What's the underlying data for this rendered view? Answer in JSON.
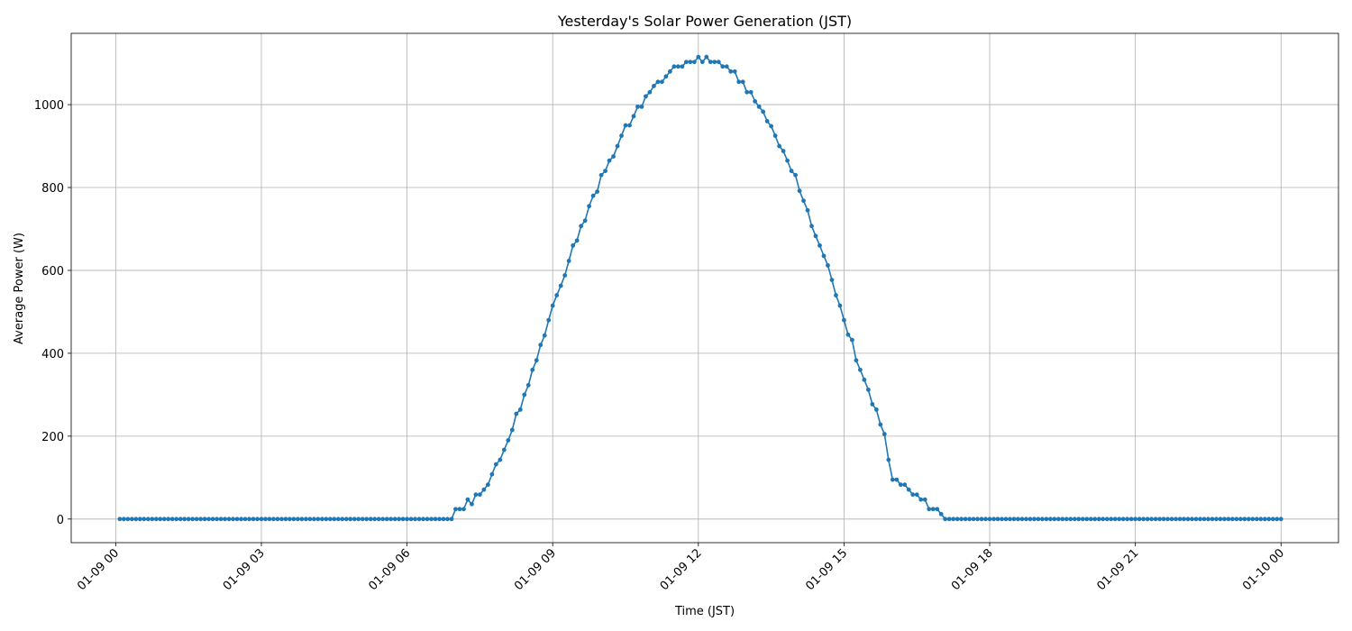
{
  "chart_data": {
    "type": "line",
    "title": "Yesterday's Solar Power Generation (JST)",
    "x_label": "Time (JST)",
    "y_label": "Average Power (W)",
    "x": [
      5,
      10,
      15,
      20,
      25,
      30,
      35,
      40,
      45,
      50,
      55,
      60,
      65,
      70,
      75,
      80,
      85,
      90,
      95,
      100,
      105,
      110,
      115,
      120,
      125,
      130,
      135,
      140,
      145,
      150,
      155,
      160,
      165,
      170,
      175,
      180,
      185,
      190,
      195,
      200,
      205,
      210,
      215,
      220,
      225,
      230,
      235,
      240,
      245,
      250,
      255,
      260,
      265,
      270,
      275,
      280,
      285,
      290,
      295,
      300,
      305,
      310,
      315,
      320,
      325,
      330,
      335,
      340,
      345,
      350,
      355,
      360,
      365,
      370,
      375,
      380,
      385,
      390,
      395,
      400,
      405,
      410,
      415,
      420,
      425,
      430,
      435,
      440,
      445,
      450,
      455,
      460,
      465,
      470,
      475,
      480,
      485,
      490,
      495,
      500,
      505,
      510,
      515,
      520,
      525,
      530,
      535,
      540,
      545,
      550,
      555,
      560,
      565,
      570,
      575,
      580,
      585,
      590,
      595,
      600,
      605,
      610,
      615,
      620,
      625,
      630,
      635,
      640,
      645,
      650,
      655,
      660,
      665,
      670,
      675,
      680,
      685,
      690,
      695,
      700,
      705,
      710,
      715,
      720,
      725,
      730,
      735,
      740,
      745,
      750,
      755,
      760,
      765,
      770,
      775,
      780,
      785,
      790,
      795,
      800,
      805,
      810,
      815,
      820,
      825,
      830,
      835,
      840,
      845,
      850,
      855,
      860,
      865,
      870,
      875,
      880,
      885,
      890,
      895,
      900,
      905,
      910,
      915,
      920,
      925,
      930,
      935,
      940,
      945,
      950,
      955,
      960,
      965,
      970,
      975,
      980,
      985,
      990,
      995,
      1000,
      1005,
      1010,
      1015,
      1020,
      1025,
      1030,
      1035,
      1040,
      1045,
      1050,
      1055,
      1060,
      1065,
      1070,
      1075,
      1080,
      1085,
      1090,
      1095,
      1100,
      1105,
      1110,
      1115,
      1120,
      1125,
      1130,
      1135,
      1140,
      1145,
      1150,
      1155,
      1160,
      1165,
      1170,
      1175,
      1180,
      1185,
      1190,
      1195,
      1200,
      1205,
      1210,
      1215,
      1220,
      1225,
      1230,
      1235,
      1240,
      1245,
      1250,
      1255,
      1260,
      1265,
      1270,
      1275,
      1280,
      1285,
      1290,
      1295,
      1300,
      1305,
      1310,
      1315,
      1320,
      1325,
      1330,
      1335,
      1340,
      1345,
      1350,
      1355,
      1360,
      1365,
      1370,
      1375,
      1380,
      1385,
      1390,
      1395,
      1400,
      1405,
      1410,
      1415,
      1420,
      1425,
      1430,
      1435,
      1440
    ],
    "series": [
      {
        "color": "#1f77b4",
        "values": [
          0,
          0,
          0,
          0,
          0,
          0,
          0,
          0,
          0,
          0,
          0,
          0,
          0,
          0,
          0,
          0,
          0,
          0,
          0,
          0,
          0,
          0,
          0,
          0,
          0,
          0,
          0,
          0,
          0,
          0,
          0,
          0,
          0,
          0,
          0,
          0,
          0,
          0,
          0,
          0,
          0,
          0,
          0,
          0,
          0,
          0,
          0,
          0,
          0,
          0,
          0,
          0,
          0,
          0,
          0,
          0,
          0,
          0,
          0,
          0,
          0,
          0,
          0,
          0,
          0,
          0,
          0,
          0,
          0,
          0,
          0,
          0,
          0,
          0,
          0,
          0,
          0,
          0,
          0,
          0,
          0,
          0,
          0,
          24,
          24,
          24,
          47,
          36,
          59,
          59,
          71,
          83,
          108,
          132,
          143,
          167,
          190,
          215,
          254,
          264,
          300,
          323,
          360,
          383,
          420,
          443,
          480,
          515,
          540,
          563,
          588,
          623,
          660,
          672,
          707,
          720,
          755,
          780,
          790,
          830,
          840,
          865,
          875,
          900,
          925,
          950,
          950,
          972,
          995,
          995,
          1020,
          1030,
          1045,
          1055,
          1055,
          1068,
          1080,
          1092,
          1092,
          1092,
          1103,
          1103,
          1103,
          1115,
          1103,
          1115,
          1103,
          1103,
          1103,
          1092,
          1092,
          1080,
          1080,
          1055,
          1055,
          1030,
          1030,
          1008,
          995,
          983,
          960,
          948,
          925,
          900,
          888,
          865,
          840,
          830,
          792,
          768,
          745,
          707,
          683,
          660,
          635,
          612,
          577,
          540,
          515,
          480,
          445,
          432,
          383,
          360,
          336,
          312,
          277,
          264,
          228,
          205,
          143,
          95,
          95,
          83,
          83,
          71,
          59,
          59,
          47,
          47,
          24,
          24,
          24,
          12,
          0,
          0,
          0,
          0,
          0,
          0,
          0,
          0,
          0,
          0,
          0,
          0,
          0,
          0,
          0,
          0,
          0,
          0,
          0,
          0,
          0,
          0,
          0,
          0,
          0,
          0,
          0,
          0,
          0,
          0,
          0,
          0,
          0,
          0,
          0,
          0,
          0,
          0,
          0,
          0,
          0,
          0,
          0,
          0,
          0,
          0,
          0,
          0,
          0,
          0,
          0,
          0,
          0,
          0,
          0,
          0,
          0,
          0,
          0,
          0,
          0,
          0,
          0,
          0,
          0,
          0,
          0,
          0,
          0,
          0,
          0,
          0,
          0,
          0,
          0,
          0,
          0,
          0,
          0,
          0,
          0,
          0,
          0,
          0
        ]
      }
    ],
    "xlim": [
      -55,
      1511
    ],
    "xticks": [
      {
        "value": 0,
        "label": "01-09 00"
      },
      {
        "value": 180,
        "label": "01-09 03"
      },
      {
        "value": 360,
        "label": "01-09 06"
      },
      {
        "value": 540,
        "label": "01-09 09"
      },
      {
        "value": 720,
        "label": "01-09 12"
      },
      {
        "value": 900,
        "label": "01-09 15"
      },
      {
        "value": 1080,
        "label": "01-09 18"
      },
      {
        "value": 1260,
        "label": "01-09 21"
      },
      {
        "value": 1440,
        "label": "01-10 00"
      }
    ],
    "ylim": [
      -57,
      1172
    ],
    "yticks": [
      0,
      200,
      400,
      600,
      800,
      1000
    ],
    "grid": true
  }
}
